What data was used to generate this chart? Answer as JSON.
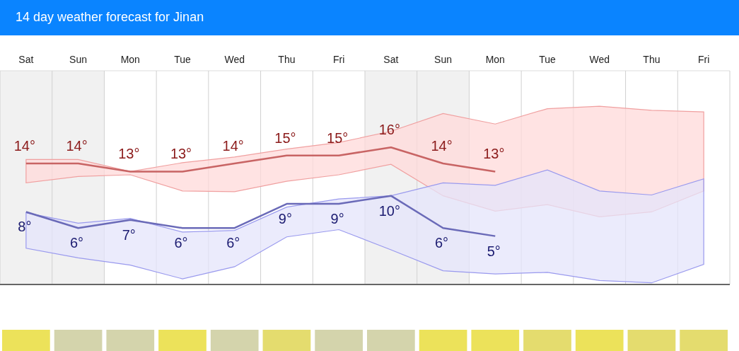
{
  "chart_data": {
    "type": "line",
    "title": "14 day weather forecast for Jinan",
    "categories": [
      "Sat",
      "Sun",
      "Mon",
      "Tue",
      "Wed",
      "Thu",
      "Fri",
      "Sat",
      "Sun",
      "Mon",
      "Tue",
      "Wed",
      "Thu",
      "Fri"
    ],
    "series": [
      {
        "color": "#c86464",
        "values": [
          14,
          14,
          13,
          13,
          14,
          15,
          15,
          16,
          14,
          13,
          null,
          null,
          null,
          null
        ],
        "value_labels": [
          "14°",
          "14°",
          "13°",
          "13°",
          "14°",
          "15°",
          "15°",
          "16°",
          "14°",
          "13°",
          null,
          null,
          null,
          null
        ],
        "upper": [
          14.5,
          14.5,
          13.0,
          14.1,
          14.8,
          15.8,
          16.6,
          18.0,
          20.2,
          18.9,
          20.8,
          21.1,
          20.6,
          20.4
        ],
        "lower": [
          11.6,
          12.4,
          12.6,
          10.6,
          10.5,
          11.8,
          12.6,
          13.9,
          10.0,
          8.1,
          8.9,
          7.4,
          8.0,
          10.6
        ]
      },
      {
        "color": "#6a6ab8",
        "values": [
          8,
          6,
          7,
          6,
          6,
          9,
          9,
          10,
          6,
          5,
          null,
          null,
          null,
          null
        ],
        "value_labels": [
          "8°",
          "6°",
          "7°",
          "6°",
          "6°",
          "9°",
          "9°",
          "10°",
          "6°",
          "5°",
          null,
          null,
          null,
          null
        ],
        "upper": [
          7.9,
          6.6,
          7.2,
          5.5,
          5.7,
          8.6,
          9.6,
          10.0,
          11.6,
          11.3,
          13.2,
          10.6,
          10.1,
          12.1
        ],
        "lower": [
          3.5,
          2.3,
          1.4,
          -0.3,
          1.2,
          4.9,
          5.8,
          3.3,
          0.7,
          0.3,
          0.5,
          -0.5,
          -0.8,
          1.5
        ]
      }
    ],
    "ylim": [
      -1,
      25.5
    ],
    "grid": "x",
    "line_style": "solid"
  }
}
